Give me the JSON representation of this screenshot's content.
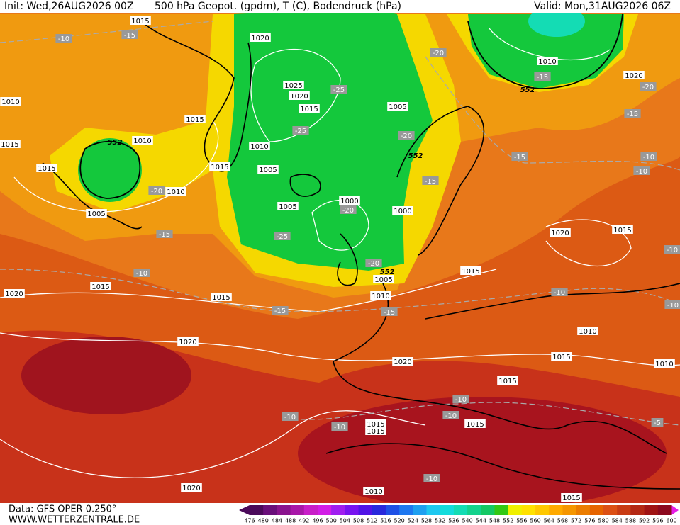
{
  "header": {
    "init": "Init: Wed,26AUG2026 00Z",
    "title": "500 hPa Geopot. (gpdm), T (C), Bodendruck (hPa)",
    "valid": "Valid: Mon,31AUG2026 06Z"
  },
  "map_labels": {
    "pressure": [
      "1015",
      "1020",
      "1025",
      "1020",
      "1015",
      "1005",
      "1010",
      "1005",
      "1015",
      "1015",
      "1010",
      "1015",
      "1010",
      "1005",
      "1005",
      "1000",
      "1000",
      "1015",
      "1015",
      "1020",
      "1020",
      "1010",
      "1015",
      "1010",
      "1020",
      "1020",
      "1015",
      "1015",
      "1005",
      "1010",
      "1010",
      "1015",
      "1010",
      "1020",
      "1015",
      "1015",
      "1015",
      "1015",
      "1020",
      "1010",
      "1015"
    ],
    "temperature": [
      "-10",
      "-15",
      "-20",
      "-15",
      "-25",
      "-20",
      "-15",
      "-25",
      "-20",
      "-15",
      "-10",
      "-10",
      "-20",
      "-15",
      "-15",
      "-20",
      "-25",
      "-20",
      "-10",
      "-15",
      "-15",
      "-10",
      "-10",
      "-10",
      "-10",
      "-10",
      "-10",
      "-5",
      "-10",
      "-10"
    ],
    "height": [
      "552",
      "552",
      "552",
      "552"
    ]
  },
  "footer": {
    "data_source": "Data: GFS OPER 0.250°",
    "site": "WWW.WETTERZENTRALE.DE"
  },
  "legend": {
    "ticks": [
      476,
      480,
      484,
      488,
      492,
      496,
      500,
      504,
      508,
      512,
      516,
      520,
      524,
      528,
      532,
      536,
      540,
      544,
      548,
      552,
      556,
      560,
      564,
      568,
      572,
      576,
      580,
      584,
      588,
      592,
      596,
      600
    ],
    "colors": [
      "#4b0a5a",
      "#6a0f7a",
      "#8a148e",
      "#a817a8",
      "#c81ec8",
      "#d21ee6",
      "#a01ef0",
      "#7814f0",
      "#5014e6",
      "#2828dc",
      "#1e50e6",
      "#1e78f0",
      "#1ea0f0",
      "#1ec8f0",
      "#14dcdc",
      "#14dcb4",
      "#14d28c",
      "#14c864",
      "#32c814",
      "#f0f000",
      "#ffe100",
      "#ffc800",
      "#ffaa00",
      "#f59600",
      "#eb7d00",
      "#e66400",
      "#dc5014",
      "#c83c14",
      "#b42814",
      "#a01414",
      "#8c0a1e"
    ]
  }
}
